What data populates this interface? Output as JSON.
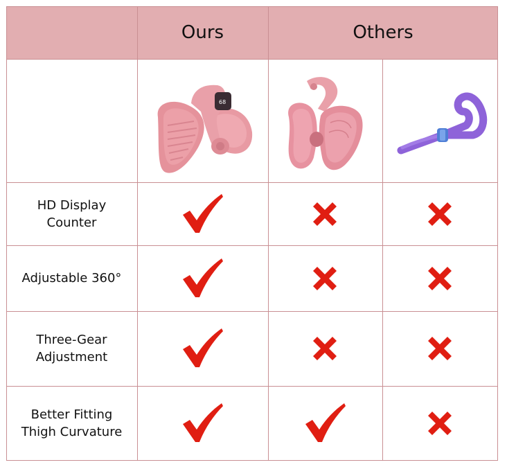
{
  "header": {
    "ours": "Ours",
    "others": "Others"
  },
  "products": [
    {
      "icon": "pink-hip-trainer-with-display-image",
      "display": "68"
    },
    {
      "icon": "pink-kegel-trainer-image"
    },
    {
      "icon": "purple-thigh-master-image"
    }
  ],
  "rows": [
    {
      "feature": [
        "HD Display",
        "Counter"
      ],
      "marks": [
        "check",
        "cross",
        "cross"
      ]
    },
    {
      "feature": [
        "Adjustable 360°"
      ],
      "marks": [
        "check",
        "cross",
        "cross"
      ]
    },
    {
      "feature": [
        "Three-Gear",
        "Adjustment"
      ],
      "marks": [
        "check",
        "cross",
        "cross"
      ]
    },
    {
      "feature": [
        "Better Fitting",
        "Thigh Curvature"
      ],
      "marks": [
        "check",
        "check",
        "cross"
      ]
    }
  ],
  "colors": {
    "header_bg": "#e2aeb1",
    "grid": "#c98f93",
    "mark": "#e01e12"
  }
}
